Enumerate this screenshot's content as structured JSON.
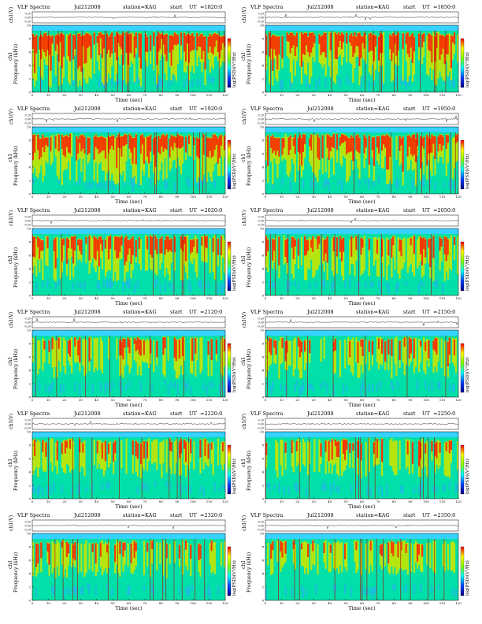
{
  "header": {
    "title": "VLF Spectra",
    "station": "station=KAG",
    "start_label": "start",
    "ut_label": "UT"
  },
  "axis_labels": {
    "channel": "ch1(V)",
    "ylabel": "Frequency (kHz)",
    "ylabel_prefix": "ch1",
    "xlabel": "Time (sec)",
    "colorbar": "log(PSD)(V²/Hz)"
  },
  "colors": {
    "background": "#00e0a8",
    "low": "#1fb8e6",
    "mid": "#c8e600",
    "high": "#ff1a00",
    "band_top": "#37d2ff"
  },
  "chart_data": [
    {
      "type": "heatmap",
      "date": "Jul212008",
      "start_ut": "=1820:0",
      "xlim": [
        0,
        120
      ],
      "ylim": [
        0,
        10
      ],
      "ch_ticks": [
        "0.20",
        "0.00",
        "-0.20"
      ],
      "x_ticks": [
        0,
        10,
        20,
        30,
        40,
        50,
        60,
        70,
        80,
        90,
        100,
        110,
        120
      ],
      "y_ticks": [
        0,
        2,
        4,
        6,
        8,
        10
      ],
      "activity": 0.95
    },
    {
      "type": "heatmap",
      "date": "Jul212008",
      "start_ut": "=1850:0",
      "xlim": [
        0,
        120
      ],
      "ylim": [
        0,
        10
      ],
      "ch_ticks": [
        "0.20",
        "0.00",
        "-0.20"
      ],
      "x_ticks": [
        0,
        10,
        20,
        30,
        40,
        50,
        60,
        70,
        80,
        90,
        100,
        110,
        120
      ],
      "y_ticks": [
        0,
        2,
        4,
        6,
        8,
        10
      ],
      "activity": 0.9
    },
    {
      "type": "heatmap",
      "date": "Jul212008",
      "start_ut": "=1920:0",
      "xlim": [
        0,
        120
      ],
      "ylim": [
        0,
        10
      ],
      "ch_ticks": [
        "0.20",
        "0.00",
        "-0.20"
      ],
      "x_ticks": [
        0,
        10,
        20,
        30,
        40,
        50,
        60,
        70,
        80,
        90,
        100,
        110,
        120
      ],
      "y_ticks": [
        0,
        2,
        4,
        6,
        8,
        10
      ],
      "activity": 0.85
    },
    {
      "type": "heatmap",
      "date": "Jul212008",
      "start_ut": "=1950:0",
      "xlim": [
        0,
        120
      ],
      "ylim": [
        0,
        10
      ],
      "ch_ticks": [
        "0.20",
        "0.00",
        "-0.20"
      ],
      "x_ticks": [
        0,
        10,
        20,
        30,
        40,
        50,
        60,
        70,
        80,
        90,
        100,
        110,
        120
      ],
      "y_ticks": [
        0,
        2,
        4,
        6,
        8,
        10
      ],
      "activity": 0.85
    },
    {
      "type": "heatmap",
      "date": "Jul212008",
      "start_ut": "=2020:0",
      "xlim": [
        0,
        120
      ],
      "ylim": [
        0,
        10
      ],
      "ch_ticks": [
        "0.20",
        "0.00",
        "-0.20"
      ],
      "x_ticks": [
        0,
        10,
        20,
        30,
        40,
        50,
        60,
        70,
        80,
        90,
        100,
        110,
        120
      ],
      "y_ticks": [
        0,
        2,
        4,
        6,
        8,
        10
      ],
      "activity": 0.7
    },
    {
      "type": "heatmap",
      "date": "Jul212008",
      "start_ut": "=2050:0",
      "xlim": [
        0,
        120
      ],
      "ylim": [
        0,
        10
      ],
      "ch_ticks": [
        "0.20",
        "0.00",
        "-0.20"
      ],
      "x_ticks": [
        0,
        10,
        20,
        30,
        40,
        50,
        60,
        70,
        80,
        90,
        100,
        110,
        120
      ],
      "y_ticks": [
        0,
        2,
        4,
        6,
        8,
        10
      ],
      "activity": 0.7
    },
    {
      "type": "heatmap",
      "date": "Jul212008",
      "start_ut": "=2120:0",
      "xlim": [
        0,
        120
      ],
      "ylim": [
        0,
        10
      ],
      "ch_ticks": [
        "0.20",
        "0.00",
        "-0.20"
      ],
      "x_ticks": [
        0,
        10,
        20,
        30,
        40,
        50,
        60,
        70,
        80,
        90,
        100,
        110,
        120
      ],
      "y_ticks": [
        0,
        2,
        4,
        6,
        8,
        10
      ],
      "activity": 0.55
    },
    {
      "type": "heatmap",
      "date": "Jul212008",
      "start_ut": "=2150:0",
      "xlim": [
        0,
        120
      ],
      "ylim": [
        0,
        10
      ],
      "ch_ticks": [
        "0.20",
        "0.00",
        "-0.20"
      ],
      "x_ticks": [
        0,
        10,
        20,
        30,
        40,
        50,
        60,
        70,
        80,
        90,
        100,
        110,
        120
      ],
      "y_ticks": [
        0,
        2,
        4,
        6,
        8,
        10
      ],
      "activity": 0.55
    },
    {
      "type": "heatmap",
      "date": "Jul212008",
      "start_ut": "=2220:0",
      "xlim": [
        0,
        120
      ],
      "ylim": [
        0,
        10
      ],
      "ch_ticks": [
        "0.20",
        "0.00",
        "-0.20"
      ],
      "x_ticks": [
        0,
        10,
        20,
        30,
        40,
        50,
        60,
        70,
        80,
        90,
        100,
        110,
        120
      ],
      "y_ticks": [
        0,
        2,
        4,
        6,
        8,
        10
      ],
      "activity": 0.5
    },
    {
      "type": "heatmap",
      "date": "Jul212008",
      "start_ut": "=2250:0",
      "xlim": [
        0,
        120
      ],
      "ylim": [
        0,
        10
      ],
      "ch_ticks": [
        "0.20",
        "0.00",
        "-0.20"
      ],
      "x_ticks": [
        0,
        10,
        20,
        30,
        40,
        50,
        60,
        70,
        80,
        90,
        100,
        110,
        120
      ],
      "y_ticks": [
        0,
        2,
        4,
        6,
        8,
        10
      ],
      "activity": 0.5
    },
    {
      "type": "heatmap",
      "date": "Jul212008",
      "start_ut": "=2320:0",
      "xlim": [
        0,
        120
      ],
      "ylim": [
        0,
        10
      ],
      "ch_ticks": [
        "0.20",
        "0.00",
        "-0.20"
      ],
      "x_ticks": [
        0,
        10,
        20,
        30,
        40,
        50,
        60,
        70,
        80,
        90,
        100,
        110,
        120
      ],
      "y_ticks": [
        0,
        2,
        4,
        6,
        8,
        10
      ],
      "activity": 0.45
    },
    {
      "type": "heatmap",
      "date": "Jul212008",
      "start_ut": "=2350:0",
      "xlim": [
        0,
        120
      ],
      "ylim": [
        0,
        10
      ],
      "ch_ticks": [
        "0.20",
        "0.00",
        "-0.20"
      ],
      "x_ticks": [
        0,
        10,
        20,
        30,
        40,
        50,
        60,
        70,
        80,
        90,
        100,
        110,
        120
      ],
      "y_ticks": [
        0,
        2,
        4,
        6,
        8,
        10
      ],
      "activity": 0.35
    }
  ]
}
